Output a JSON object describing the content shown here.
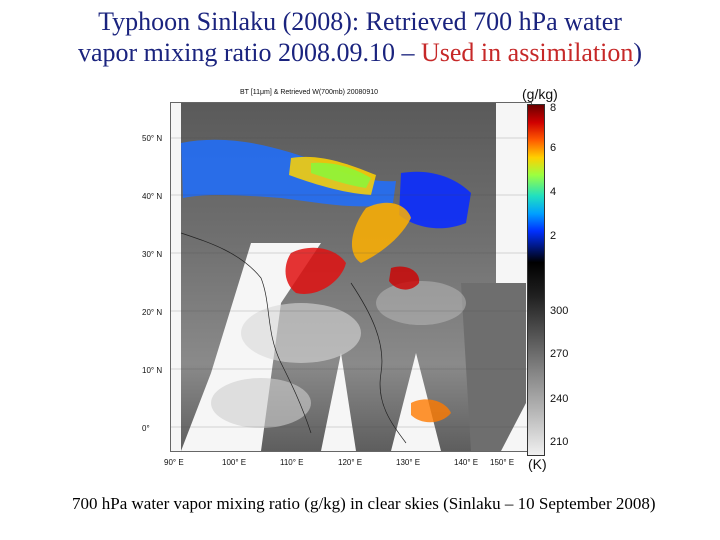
{
  "slide": {
    "title_line1": "Typhoon Sinlaku (2008): Retrieved 700 hPa water",
    "title_line2_main": "vapor mixing ratio 2008.09.10 – ",
    "title_line2_red": "Used in assimilation",
    "title_line2_end": ")",
    "caption": "700 hPa water vapor mixing ratio (g/kg) in clear skies (Sinlaku – 10 September 2008)"
  },
  "figure": {
    "inner_title": "BT [11μm] & Retrieved W(700mb) 20080910",
    "lat_labels": [
      "50° N",
      "40° N",
      "30° N",
      "20° N",
      "10° N",
      "0°"
    ],
    "lon_labels": [
      "90° E",
      "100° E",
      "110° E",
      "120° E",
      "130° E",
      "140° E",
      "150° E"
    ],
    "colorbar_top_unit": "(g/kg)",
    "colorbar_bottom_unit": "(K)",
    "colorbar_ticks_wv": [
      "8",
      "6",
      "4",
      "2"
    ],
    "colorbar_ticks_bt": [
      "300",
      "270",
      "240",
      "210"
    ]
  }
}
